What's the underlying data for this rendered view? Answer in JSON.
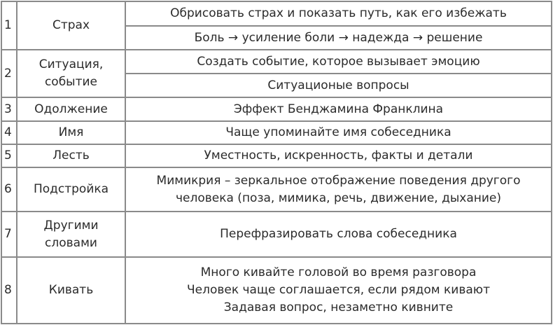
{
  "rows": [
    {
      "num": "1",
      "name": [
        "Страх"
      ],
      "items": [
        [
          "Обрисовать страх и показать путь, как его избежать"
        ],
        [
          "Боль → усиление боли → надежда → решение"
        ]
      ]
    },
    {
      "num": "2",
      "name": [
        "Ситуация,",
        "событие"
      ],
      "items": [
        [
          "Создать событие, которое вызывает эмоцию"
        ],
        [
          "Ситуационые вопросы"
        ]
      ]
    },
    {
      "num": "3",
      "name": [
        "Одолжение"
      ],
      "items": [
        [
          "Эффект Бенджамина Франклина"
        ]
      ]
    },
    {
      "num": "4",
      "name": [
        "Имя"
      ],
      "items": [
        [
          "Чаще упоминайте имя собеседника"
        ]
      ]
    },
    {
      "num": "5",
      "name": [
        "Лесть"
      ],
      "items": [
        [
          "Уместность, искренность, факты и детали"
        ]
      ]
    },
    {
      "num": "6",
      "name": [
        "Подстройка"
      ],
      "items": [
        [
          "Мимикрия – зеркальное отображение поведения другого",
          "человека (поза, мимика, речь, движение, дыхание)"
        ]
      ]
    },
    {
      "num": "7",
      "name": [
        "Другими",
        "словами"
      ],
      "items": [
        [
          "Перефразировать слова собеседника"
        ]
      ]
    },
    {
      "num": "8",
      "name": [
        "Кивать"
      ],
      "items": [
        [
          "Много кивайте головой во время разговора",
          "Человек чаще соглашается, если рядом кивают",
          "Задавая вопрос, незаметно кивните"
        ]
      ]
    }
  ]
}
